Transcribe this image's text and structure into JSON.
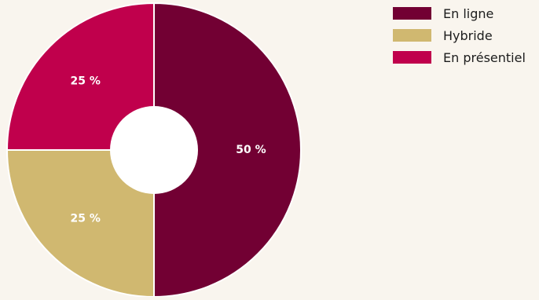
{
  "chart_data": {
    "type": "pie",
    "donut": true,
    "categories": [
      "En ligne",
      "Hybride",
      "En présentiel"
    ],
    "values": [
      50,
      25,
      25
    ],
    "value_labels": [
      "50 %",
      "25 %",
      "25 %"
    ],
    "colors": [
      "#720033",
      "#d0b870",
      "#c0004c"
    ],
    "start_at": "12 o'clock",
    "direction": "clockwise",
    "legend_position": "top-right"
  },
  "legend": {
    "items": [
      {
        "label": "En ligne",
        "color": "#720033"
      },
      {
        "label": "Hybride",
        "color": "#d0b870"
      },
      {
        "label": "En présentiel",
        "color": "#c0004c"
      }
    ]
  }
}
